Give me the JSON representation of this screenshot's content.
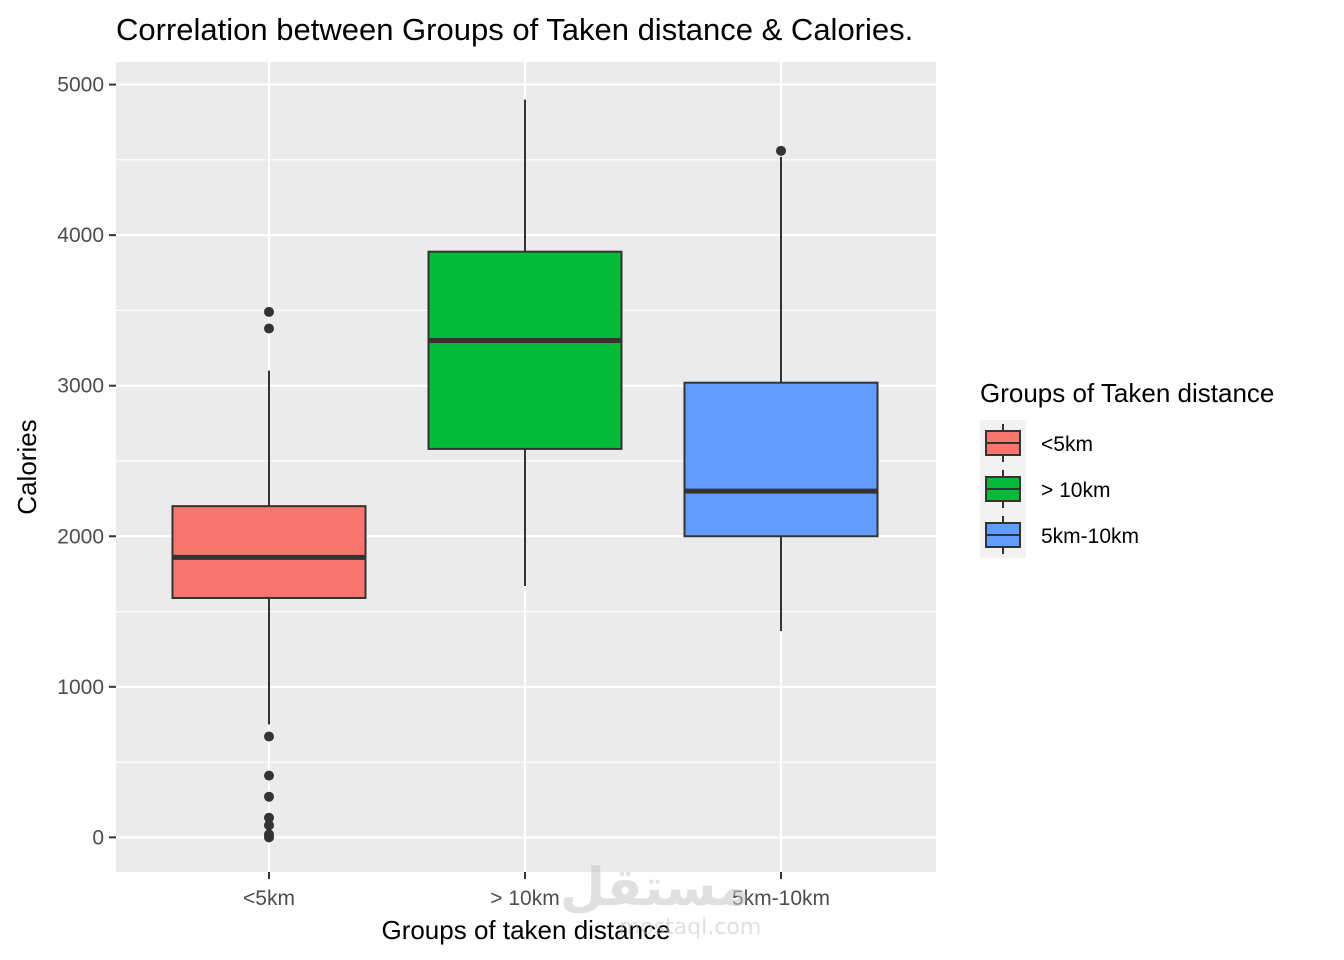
{
  "chart_data": {
    "type": "boxplot",
    "title": "Correlation between Groups of Taken distance & Calories.",
    "xlabel": "Groups of taken distance",
    "ylabel": "Calories",
    "ylim": [
      -230,
      5150
    ],
    "yticks": [
      0,
      1000,
      2000,
      3000,
      4000,
      5000
    ],
    "yticks_labels": [
      "0",
      "1000",
      "2000",
      "3000",
      "4000",
      "5000"
    ],
    "grid": true,
    "legend": {
      "title": "Groups of Taken distance",
      "position": "right"
    },
    "categories": [
      "<5km",
      "> 10km",
      "5km-10km"
    ],
    "boxes": [
      {
        "category": "<5km",
        "color": "#F8766D",
        "whisker_low": 750,
        "q1": 1590,
        "median": 1860,
        "q3": 2200,
        "whisker_high": 3100,
        "outliers": [
          3490,
          3380,
          670,
          410,
          270,
          130,
          80,
          20,
          0
        ]
      },
      {
        "category": "> 10km",
        "color": "#00BA38",
        "whisker_low": 1670,
        "q1": 2580,
        "median": 3300,
        "q3": 3890,
        "whisker_high": 4900,
        "outliers": []
      },
      {
        "category": "5km-10km",
        "color": "#619CFF",
        "whisker_low": 1370,
        "q1": 2000,
        "median": 2300,
        "q3": 3020,
        "whisker_high": 4520,
        "outliers": [
          4560
        ]
      }
    ]
  },
  "watermark": {
    "brand": "مستقل",
    "domain": "mostaql.com"
  }
}
